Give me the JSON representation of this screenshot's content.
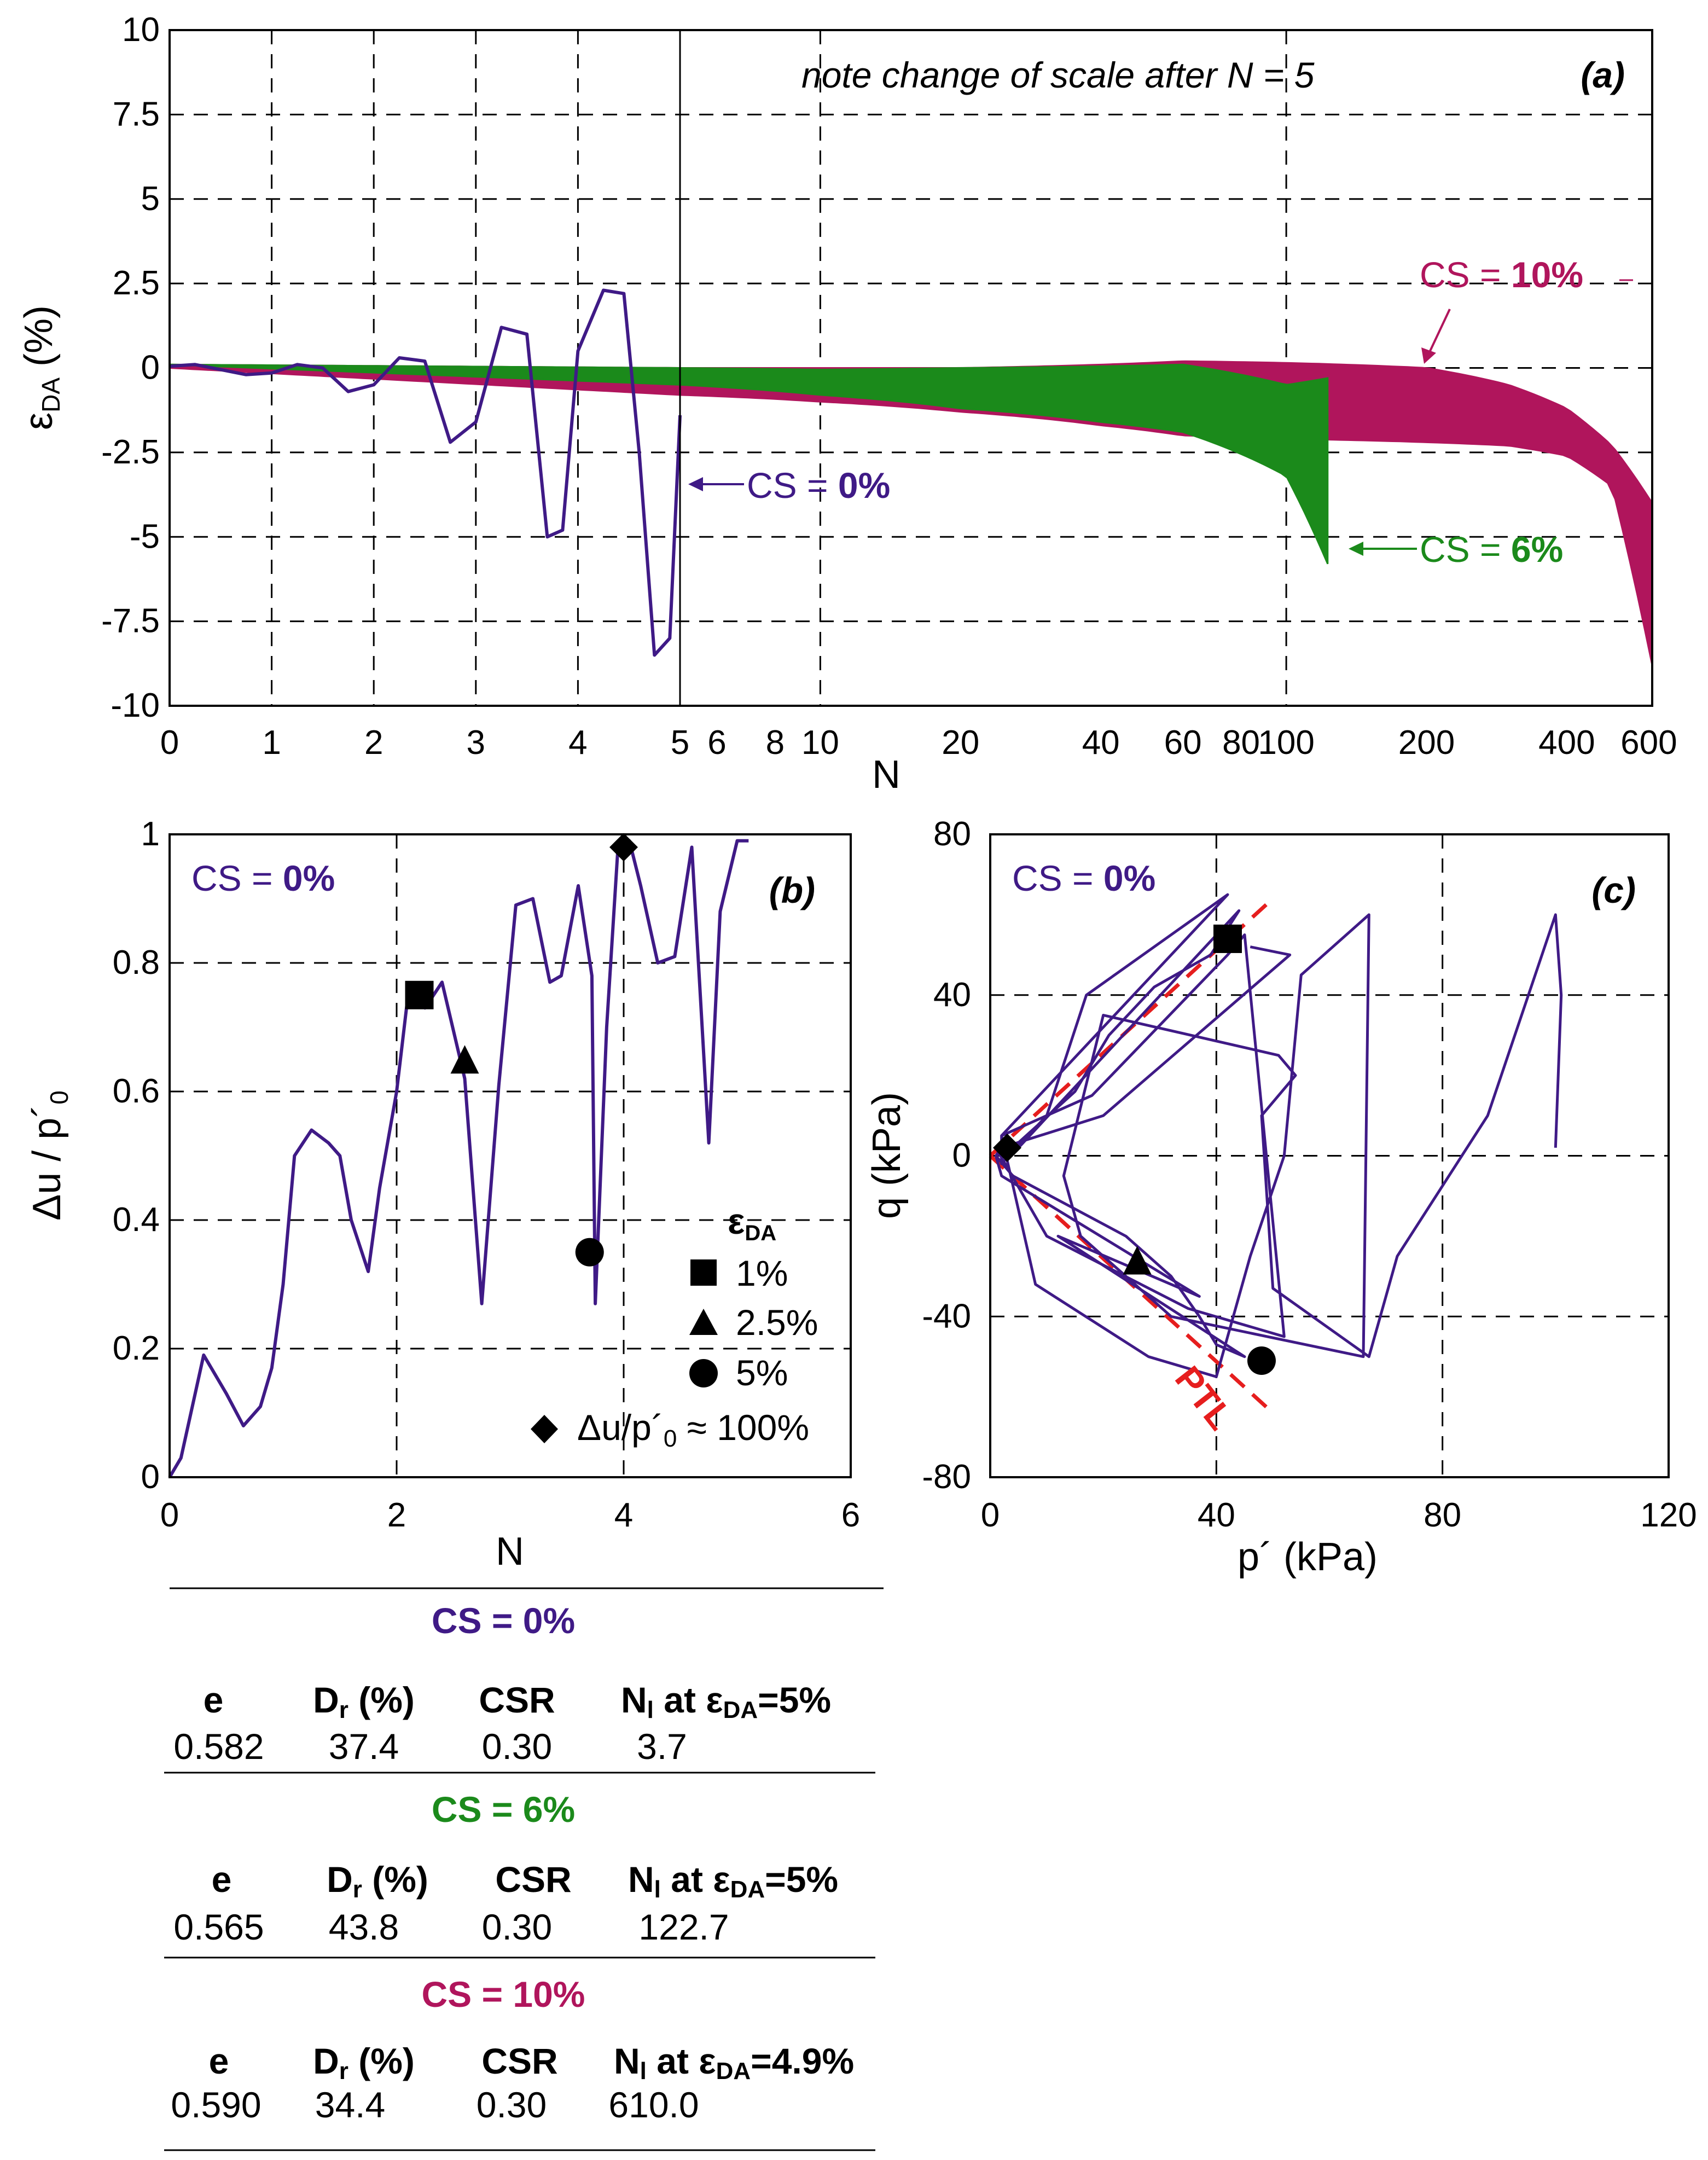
{
  "chart_data": [
    {
      "panel_label": "(a)",
      "type": "line",
      "xlabel": "N",
      "ylabel": "ε_DA (%)",
      "ylabel_main": "ε",
      "ylabel_sub": "DA",
      "ylabel_unit": " (%)",
      "note": "note change of scale after N = 5",
      "ylim": [
        -10,
        10
      ],
      "yticks": [
        "10",
        "7.5",
        "5",
        "2.5",
        "0",
        "-2.5",
        "-5",
        "-7.5",
        "-10"
      ],
      "xticks": [
        "0",
        "1",
        "2",
        "3",
        "4",
        "5",
        "6",
        "8",
        "10",
        "20",
        "40",
        "60",
        "80",
        "100",
        "200",
        "400",
        "600"
      ],
      "grid": true,
      "annotations": {
        "cs0_prefix": "CS = ",
        "cs0_value": "0%",
        "cs6_prefix": "CS = ",
        "cs6_value": "6%",
        "cs10_prefix": "CS = ",
        "cs10_value": "10%"
      },
      "series": [
        {
          "name": "CS = 0%",
          "color": "#3F1A86",
          "x": [
            0,
            0.25,
            0.5,
            0.75,
            1.0,
            1.25,
            1.5,
            1.75,
            2.0,
            2.25,
            2.5,
            2.75,
            3.0,
            3.25,
            3.5,
            3.7,
            3.85,
            4.0,
            4.25,
            4.45,
            4.6,
            4.75,
            4.9,
            5.0
          ],
          "y": [
            0.05,
            0.1,
            -0.05,
            -0.2,
            -0.15,
            0.1,
            0.0,
            -0.7,
            -0.5,
            0.3,
            0.2,
            -2.2,
            -1.6,
            1.2,
            1.0,
            -5.0,
            -4.8,
            0.5,
            2.3,
            2.2,
            -2.5,
            -8.5,
            -8.0,
            -1.4
          ]
        },
        {
          "name": "CS = 6%",
          "color": "#1B8A1B",
          "x": [
            0,
            5,
            10,
            20,
            40,
            60,
            100,
            122.7
          ],
          "upper": [
            0.1,
            0.0,
            -0.05,
            0.0,
            0.05,
            0.1,
            -0.5,
            -0.3
          ],
          "lower": [
            0.1,
            -0.5,
            -0.8,
            -1.2,
            -1.6,
            -1.9,
            -3.2,
            -5.8
          ]
        },
        {
          "name": "CS = 10%",
          "color": "#B0155C",
          "x": [
            0,
            5,
            10,
            20,
            40,
            60,
            100,
            200,
            300,
            400,
            500,
            610
          ],
          "upper": [
            0.1,
            0.0,
            0.0,
            0.0,
            0.1,
            0.2,
            0.15,
            0.0,
            -0.5,
            -1.2,
            -2.3,
            -4.0
          ],
          "lower": [
            0.0,
            -0.8,
            -1.0,
            -1.3,
            -1.7,
            -2.0,
            -2.1,
            -2.2,
            -2.3,
            -2.6,
            -3.5,
            -8.8
          ]
        }
      ]
    },
    {
      "panel_label": "(b)",
      "type": "line",
      "xlabel": "N",
      "ylabel": "Δu / p´0",
      "ylabel_main": "Δu / p´",
      "ylabel_sub": "0",
      "xlim": [
        0,
        6
      ],
      "ylim": [
        0,
        1
      ],
      "xticks": [
        "0",
        "2",
        "4",
        "6"
      ],
      "yticks": [
        "0",
        "0.2",
        "0.4",
        "0.6",
        "0.8",
        "1"
      ],
      "grid": true,
      "series_label_prefix": "CS = ",
      "series_label_value": "0%",
      "series": [
        {
          "name": "CS = 0%",
          "color": "#3F1A86",
          "x": [
            0,
            0.1,
            0.3,
            0.5,
            0.65,
            0.8,
            0.9,
            1.0,
            1.1,
            1.25,
            1.4,
            1.5,
            1.6,
            1.75,
            1.85,
            2.0,
            2.1,
            2.25,
            2.4,
            2.6,
            2.75,
            2.9,
            3.05,
            3.2,
            3.35,
            3.45,
            3.6,
            3.72,
            3.75,
            3.85,
            3.95,
            4.05,
            4.15,
            4.3,
            4.45,
            4.6,
            4.75,
            4.85,
            5.0,
            5.1
          ],
          "y": [
            0,
            0.03,
            0.19,
            0.13,
            0.08,
            0.11,
            0.17,
            0.3,
            0.5,
            0.54,
            0.52,
            0.5,
            0.4,
            0.32,
            0.45,
            0.6,
            0.75,
            0.73,
            0.77,
            0.62,
            0.27,
            0.61,
            0.89,
            0.9,
            0.77,
            0.78,
            0.92,
            0.78,
            0.27,
            0.7,
            0.98,
            0.99,
            0.92,
            0.8,
            0.81,
            0.98,
            0.52,
            0.88,
            0.99,
            0.99
          ]
        }
      ],
      "markers": [
        {
          "shape": "square",
          "label": "1%",
          "x": 2.2,
          "y": 0.75
        },
        {
          "shape": "triangle",
          "label": "2.5%",
          "x": 2.6,
          "y": 0.65
        },
        {
          "shape": "circle",
          "label": "5%",
          "x": 3.7,
          "y": 0.35
        },
        {
          "shape": "diamond",
          "label": "Δu/p´0 ≈ 100%",
          "label_main": "Δu/p´",
          "label_sub": "0",
          "label_tail": " ≈ 100%",
          "x": 4.0,
          "y": 0.98
        }
      ],
      "legend_title_main": "ε",
      "legend_title_sub": "DA",
      "legend_placement": "bottom-right"
    },
    {
      "panel_label": "(c)",
      "type": "line",
      "xlabel": "p´ (kPa)",
      "ylabel": "q (kPa)",
      "xlim": [
        0,
        120
      ],
      "ylim": [
        -80,
        80
      ],
      "xticks": [
        "0",
        "40",
        "80",
        "120"
      ],
      "yticks": [
        "80",
        "40",
        "0",
        "-40",
        "-80"
      ],
      "grid": true,
      "series_label_prefix": "CS = ",
      "series_label_value": "0%",
      "ptl_label": "PTL",
      "series": [
        {
          "name": "CS = 0%",
          "color": "#3F1A86",
          "x": [
            100,
            101,
            100,
            88,
            72,
            67,
            62,
            50,
            48,
            54,
            51,
            20,
            13,
            16,
            32,
            66,
            67,
            55,
            52,
            46,
            40,
            28,
            8,
            2,
            42,
            34,
            17,
            10,
            2,
            2,
            18,
            42,
            45,
            52,
            35,
            10,
            1,
            5,
            44,
            39,
            29,
            21,
            15,
            4,
            1,
            2,
            37,
            12,
            45,
            40,
            37,
            32,
            24,
            4,
            1,
            2,
            20,
            53,
            46
          ],
          "y": [
            2,
            40,
            60,
            10,
            -25,
            -50,
            -45,
            -33,
            10,
            20,
            25,
            35,
            -5,
            -20,
            -40,
            -50,
            60,
            45,
            0,
            -25,
            -55,
            -50,
            -32,
            5,
            65,
            57,
            40,
            10,
            -2,
            5,
            15,
            50,
            55,
            -45,
            -38,
            -20,
            2,
            2,
            61,
            50,
            42,
            30,
            16,
            2,
            0,
            -5,
            -35,
            -20,
            -50,
            -47,
            -40,
            -30,
            -20,
            -5,
            0,
            2,
            10,
            50,
            52
          ]
        }
      ],
      "ptl": [
        {
          "x": [
            0,
            50
          ],
          "y": [
            0,
            64
          ]
        },
        {
          "x": [
            0,
            50
          ],
          "y": [
            0,
            -64
          ]
        }
      ],
      "markers": [
        {
          "shape": "square",
          "x": 42,
          "y": 54
        },
        {
          "shape": "triangle",
          "x": 26,
          "y": -26
        },
        {
          "shape": "circle",
          "x": 48,
          "y": -51
        },
        {
          "shape": "diamond",
          "x": 3,
          "y": 2
        }
      ]
    }
  ],
  "tables": [
    {
      "title_prefix": "CS = ",
      "title_value": "0%",
      "color": "#3F1A86",
      "headers": {
        "e": "e",
        "dr_main": "D",
        "dr_sub": "r",
        "dr_tail": " (%)",
        "csr": "CSR",
        "nl_main": "N",
        "nl_sub": "l",
        "nl_mid": " at ε",
        "nl_sub2": "DA",
        "nl_tail": "=5%"
      },
      "values": {
        "e": "0.582",
        "dr": "37.4",
        "csr": "0.30",
        "nl": "3.7"
      }
    },
    {
      "title_prefix": "CS = ",
      "title_value": "6%",
      "color": "#1B8A1B",
      "headers": {
        "e": "e",
        "dr_main": "D",
        "dr_sub": "r",
        "dr_tail": " (%)",
        "csr": "CSR",
        "nl_main": "N",
        "nl_sub": "l",
        "nl_mid": " at ε",
        "nl_sub2": "DA",
        "nl_tail": "=5%"
      },
      "values": {
        "e": "0.565",
        "dr": "43.8",
        "csr": "0.30",
        "nl": "122.7"
      }
    },
    {
      "title_prefix": "CS = ",
      "title_value": "10%",
      "color": "#B0155C",
      "headers": {
        "e": "e",
        "dr_main": "D",
        "dr_sub": "r",
        "dr_tail": " (%)",
        "csr": "CSR",
        "nl_main": "N",
        "nl_sub": "l",
        "nl_mid": " at ε",
        "nl_sub2": "DA",
        "nl_tail": "=4.9%"
      },
      "values": {
        "e": "0.590",
        "dr": "34.4",
        "csr": "0.30",
        "nl": "610.0"
      }
    }
  ]
}
